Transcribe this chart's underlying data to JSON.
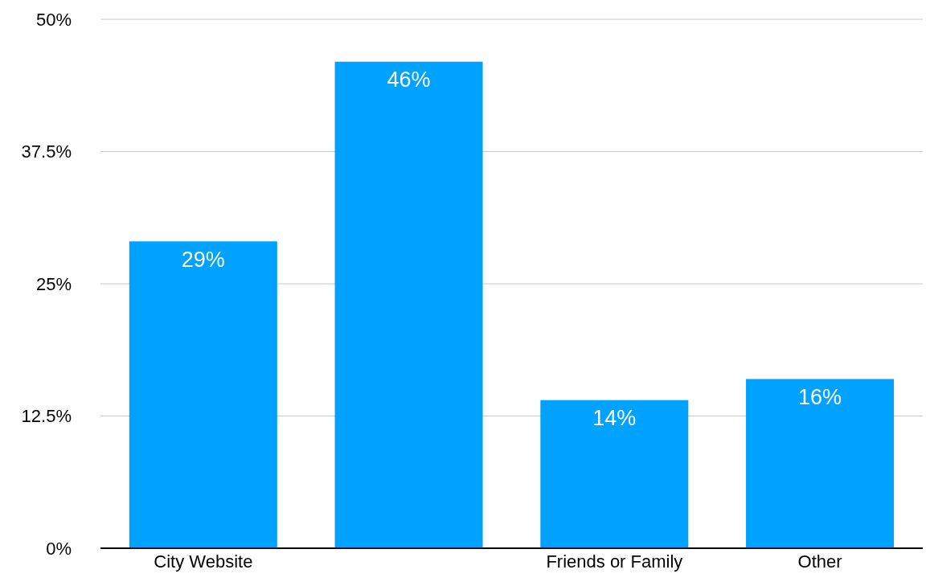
{
  "chart_data": {
    "type": "bar",
    "categories": [
      "City Website",
      null,
      "Friends or Family",
      "Other"
    ],
    "values": [
      29,
      46,
      14,
      16
    ],
    "value_labels": [
      "29%",
      "46%",
      "14%",
      "16%"
    ],
    "color": "#00a2ff",
    "ylim": [
      0,
      50
    ],
    "yticks": [
      {
        "value": 0,
        "label": "0%"
      },
      {
        "value": 12.5,
        "label": "12.5%"
      },
      {
        "value": 25,
        "label": "25%"
      },
      {
        "value": 37.5,
        "label": "37.5%"
      },
      {
        "value": 50,
        "label": "50%"
      }
    ],
    "grid": "y"
  }
}
